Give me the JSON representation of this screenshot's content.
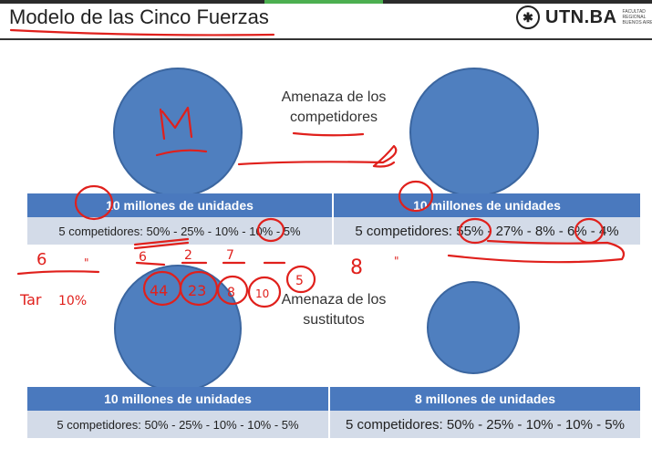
{
  "header": {
    "title": "Modelo de las Cinco Fuerzas",
    "logo": {
      "name": "UTN.BA",
      "sub": "Facultad Regional Buenos Aires"
    }
  },
  "top": {
    "label": "Amenaza de los competidores",
    "left": {
      "title": "10 millones de unidades",
      "detail": "5 competidores: 50% - 25% - 10% - 10% - 5%"
    },
    "right": {
      "title": "10 millones de unidades",
      "detail": "5 competidores: 55% - 27% - 8% - 6% - 4%"
    }
  },
  "bottom": {
    "label": "Amenaza de los sustitutos",
    "left": {
      "title": "10 millones de unidades",
      "detail": "5 competidores: 50% - 25% - 10% - 10% - 5%"
    },
    "right": {
      "title": "8 millones de unidades",
      "detail": "5 competidores: 50% - 25% - 10% - 10% - 5%"
    }
  },
  "annotations": {
    "circle_letter": "M",
    "numbers": [
      "6",
      "\"",
      "6",
      "2",
      "7",
      "44",
      "23",
      "8",
      "10",
      "5",
      "Tar",
      "10%",
      "8",
      "\""
    ]
  }
}
